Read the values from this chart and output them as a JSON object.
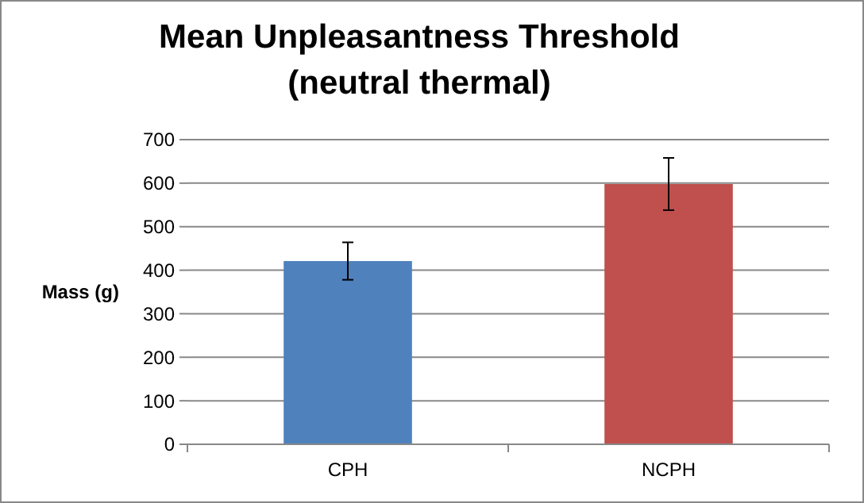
{
  "chart_data": {
    "type": "bar",
    "title": "Mean Unpleasantness Threshold\n(neutral thermal)",
    "ylabel": "Mass (g)",
    "categories": [
      "CPH",
      "NCPH"
    ],
    "values": [
      421,
      598
    ],
    "colors": [
      "#4f81bd",
      "#c0504d"
    ],
    "errors": [
      43,
      60
    ],
    "ylim": [
      0,
      700
    ],
    "yticks": [
      0,
      100,
      200,
      300,
      400,
      500,
      600,
      700
    ],
    "grid": "y"
  }
}
